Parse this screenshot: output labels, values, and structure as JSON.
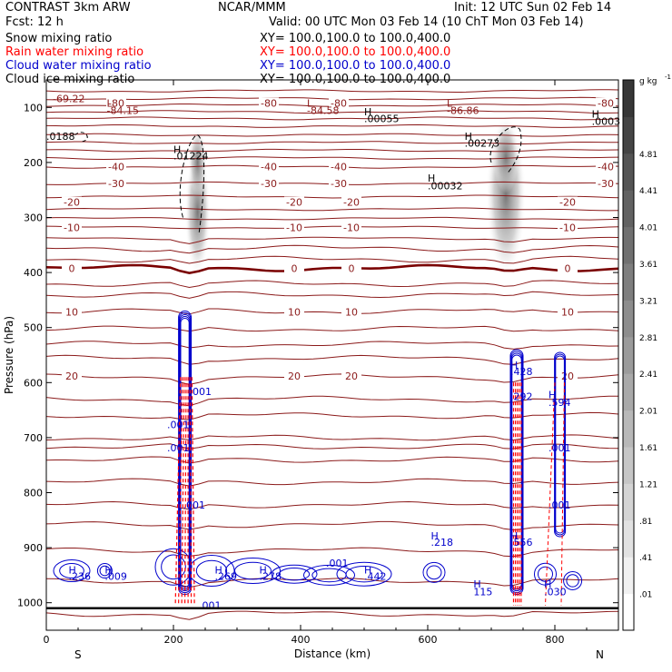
{
  "header": {
    "model": "CONTRAST   3km ARW",
    "org": "NCAR/MMM",
    "init": "Init: 12 UTC Sun 02 Feb 14",
    "fcst": "Fcst:    12 h",
    "valid": "Valid: 00 UTC Mon 03 Feb 14 (10 ChT Mon 03 Feb 14)"
  },
  "fields": [
    {
      "label": "Snow mixing ratio",
      "xy": "XY=  100.0,100.0 to 100.0,400.0",
      "color": "#000000"
    },
    {
      "label": "Rain water mixing ratio",
      "xy": "XY=  100.0,100.0 to 100.0,400.0",
      "color": "#ff0000"
    },
    {
      "label": "Cloud water mixing ratio",
      "xy": "XY=  100.0,100.0 to 100.0,400.0",
      "color": "#0000cc"
    },
    {
      "label": "Cloud ice mixing ratio",
      "xy": "XY=  100.0,100.0 to 100.0,400.0",
      "color": "#000000"
    }
  ],
  "chart_data": {
    "type": "contour cross-section",
    "xlabel": "Distance (km)",
    "ylabel": "Pressure (hPa)",
    "xlim": [
      0,
      900
    ],
    "ylim": [
      1050,
      50
    ],
    "xticks": [
      0,
      200,
      400,
      600,
      800
    ],
    "yticks": [
      100,
      200,
      300,
      400,
      500,
      600,
      700,
      800,
      900,
      1000
    ],
    "x_end_labels": {
      "left": "S",
      "right": "N"
    },
    "colorbar": {
      "unit": "g kg",
      "unit_exp": "-1",
      "levels": [
        ".01",
        ".41",
        ".81",
        "1.21",
        "1.61",
        "2.01",
        "2.41",
        "2.81",
        "3.21",
        "3.61",
        "4.01",
        "4.41",
        "4.81"
      ]
    },
    "temperature_contours": [
      {
        "label": "-80",
        "p": 92
      },
      {
        "label": "-40",
        "p": 208
      },
      {
        "label": "-30",
        "p": 238
      },
      {
        "label": "-20",
        "p": 272
      },
      {
        "label": "-10",
        "p": 318
      },
      {
        "label": "0",
        "p": 392
      },
      {
        "label": "10",
        "p": 472
      },
      {
        "label": "20",
        "p": 588
      }
    ],
    "extrema_labels": [
      {
        "t": "-69.22",
        "x": 10,
        "p": 84
      },
      {
        "t": "L",
        "x": 95,
        "p": 92
      },
      {
        "t": "-84.15",
        "x": 95,
        "p": 105
      },
      {
        "t": "L",
        "x": 410,
        "p": 92
      },
      {
        "t": "-84.58",
        "x": 410,
        "p": 105
      },
      {
        "t": "L",
        "x": 630,
        "p": 92
      },
      {
        "t": "-86.86",
        "x": 630,
        "p": 105
      },
      {
        "t": "H",
        "x": 500,
        "p": 108
      },
      {
        "t": ".00055",
        "x": 500,
        "p": 120
      },
      {
        "t": ".0188",
        "x": 0,
        "p": 152
      },
      {
        "t": "H",
        "x": 658,
        "p": 152
      },
      {
        "t": ".00273",
        "x": 658,
        "p": 165
      },
      {
        "t": "H",
        "x": 858,
        "p": 112
      },
      {
        "t": ".0003",
        "x": 858,
        "p": 125
      },
      {
        "t": "H",
        "x": 200,
        "p": 176
      },
      {
        "t": ".01224",
        "x": 200,
        "p": 188
      },
      {
        "t": "H",
        "x": 600,
        "p": 228
      },
      {
        "t": ".00032",
        "x": 600,
        "p": 242
      },
      {
        "t": "H",
        "x": 730,
        "p": 568
      },
      {
        "t": ".428",
        "x": 730,
        "p": 580
      },
      {
        "t": ".292",
        "x": 730,
        "p": 625
      },
      {
        "t": "H",
        "x": 790,
        "p": 622
      },
      {
        "t": ".594",
        "x": 790,
        "p": 636
      },
      {
        "t": ".001",
        "x": 225,
        "p": 616
      },
      {
        "t": ".001",
        "x": 190,
        "p": 676
      },
      {
        "t": ".001",
        "x": 190,
        "p": 718
      },
      {
        "t": ".001",
        "x": 215,
        "p": 822
      },
      {
        "t": ".001",
        "x": 790,
        "p": 718
      },
      {
        "t": ".001",
        "x": 790,
        "p": 822
      },
      {
        "t": "H",
        "x": 730,
        "p": 878
      },
      {
        "t": ".556",
        "x": 730,
        "p": 890
      },
      {
        "t": "H",
        "x": 605,
        "p": 878
      },
      {
        "t": ".218",
        "x": 605,
        "p": 890
      },
      {
        "t": "H",
        "x": 35,
        "p": 940
      },
      {
        "t": ".236",
        "x": 35,
        "p": 952
      },
      {
        "t": "H",
        "x": 92,
        "p": 940
      },
      {
        "t": ".009",
        "x": 92,
        "p": 952
      },
      {
        "t": "H",
        "x": 265,
        "p": 940
      },
      {
        "t": ".269",
        "x": 265,
        "p": 952
      },
      {
        "t": "H",
        "x": 335,
        "p": 940
      },
      {
        "t": ".278",
        "x": 335,
        "p": 952
      },
      {
        "t": ".001",
        "x": 440,
        "p": 928
      },
      {
        "t": "H",
        "x": 500,
        "p": 940
      },
      {
        "t": ".442",
        "x": 500,
        "p": 952
      },
      {
        "t": "H",
        "x": 672,
        "p": 966
      },
      {
        "t": "115",
        "x": 672,
        "p": 980
      },
      {
        "t": "H",
        "x": 783,
        "p": 966
      },
      {
        "t": ".030",
        "x": 783,
        "p": 980
      },
      {
        "t": ".001",
        "x": 240,
        "p": 1005
      }
    ]
  }
}
